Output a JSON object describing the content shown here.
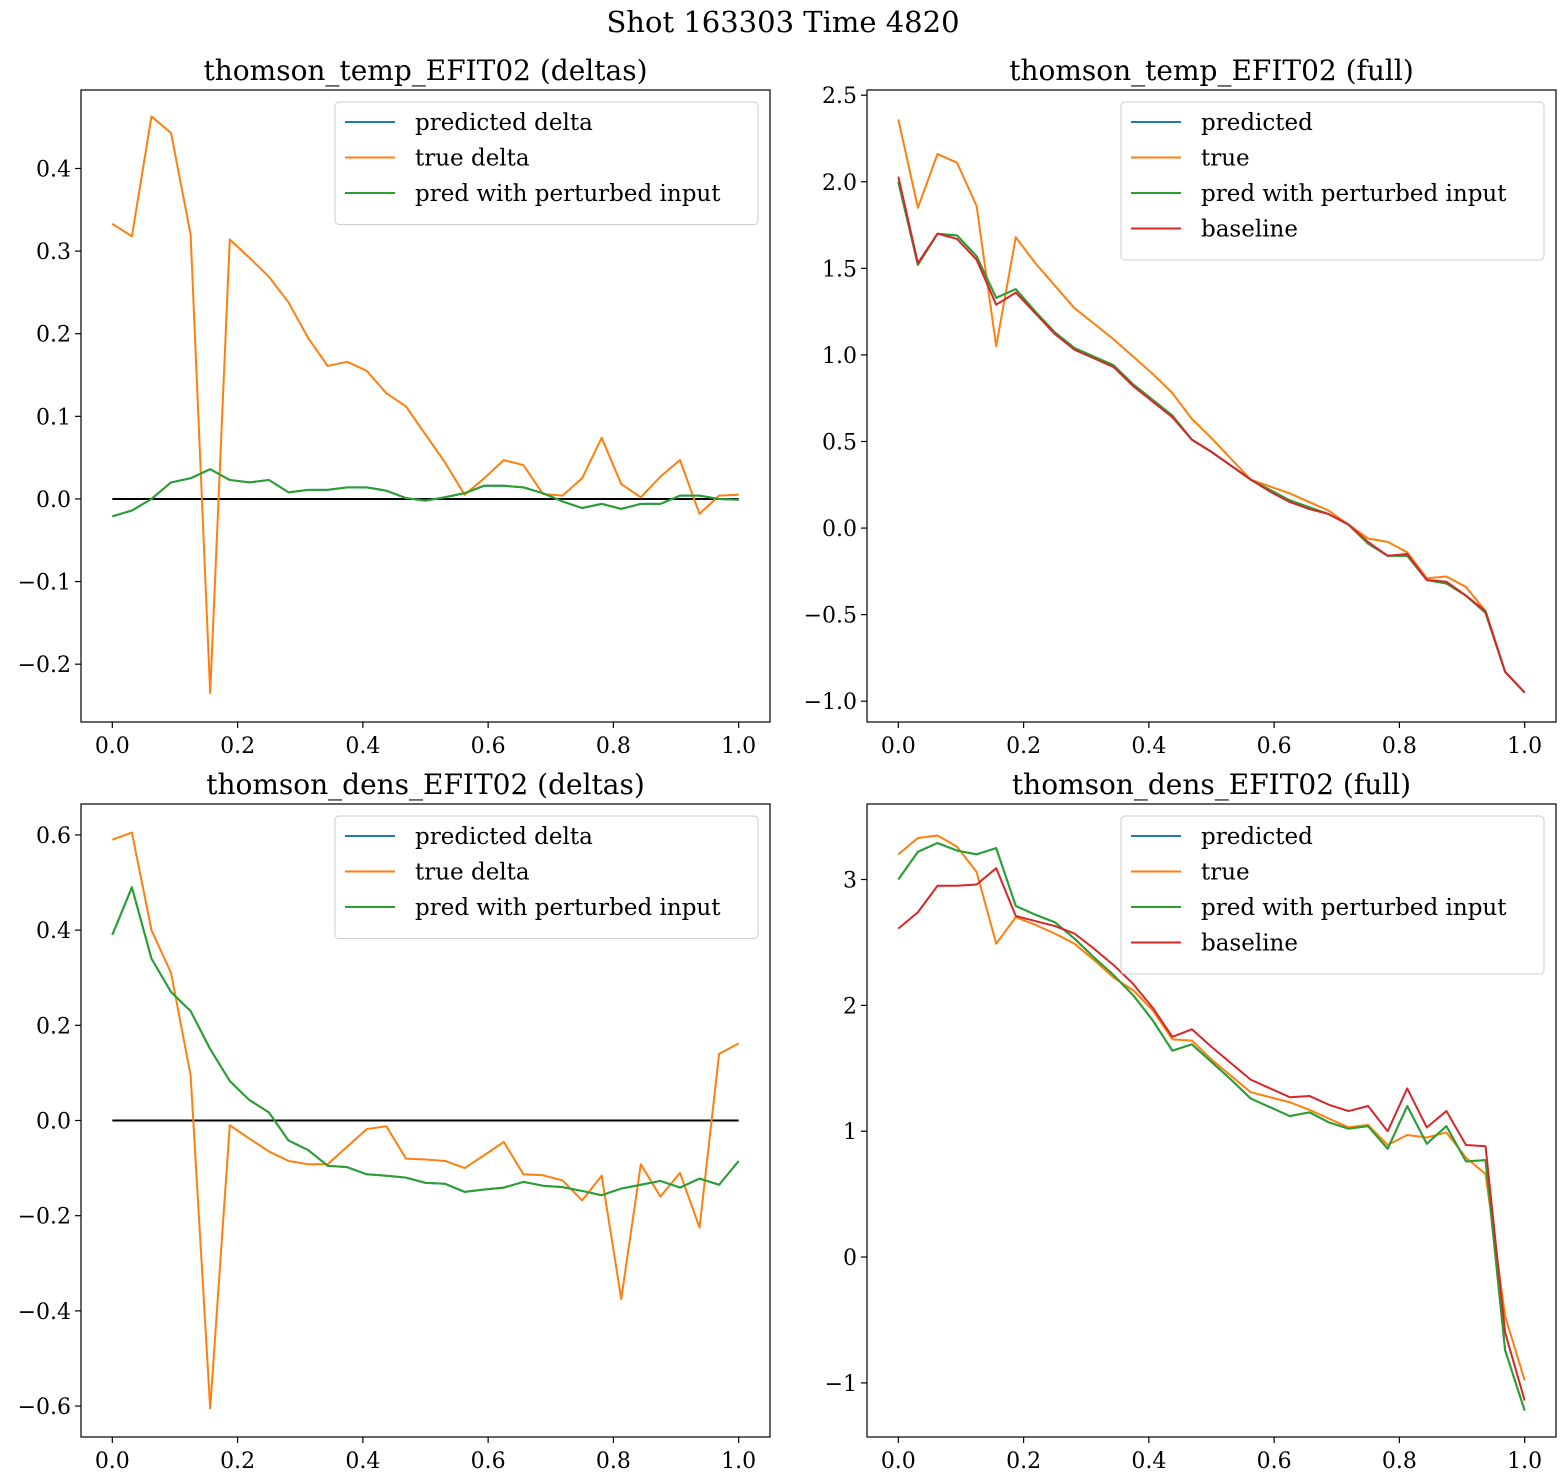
{
  "suptitle": "Shot 163303   Time 4820",
  "colors": {
    "predicted": "#1f77b4",
    "true": "#ff7f0e",
    "perturbed": "#2ca02c",
    "baseline": "#d62728",
    "zero_line": "#000000"
  },
  "chart_data": [
    {
      "type": "line",
      "title": "thomson_temp_EFIT02 (deltas)",
      "xlabel": "",
      "ylabel": "",
      "xlim": [
        -0.05,
        1.05
      ],
      "ylim": [
        -0.27,
        0.495
      ],
      "xticks": [
        0.0,
        0.2,
        0.4,
        0.6,
        0.8,
        1.0
      ],
      "xtick_labels": [
        "0.0",
        "0.2",
        "0.4",
        "0.6",
        "0.8",
        "1.0"
      ],
      "yticks": [
        -0.2,
        -0.1,
        0.0,
        0.1,
        0.2,
        0.3,
        0.4
      ],
      "ytick_labels": [
        "−0.2",
        "−0.1",
        "0.0",
        "0.1",
        "0.2",
        "0.3",
        "0.4"
      ],
      "legend_position": "top-right",
      "legend": [
        "predicted delta",
        "true delta",
        "pred with perturbed input"
      ],
      "zero_line": true,
      "x": [
        0.0,
        0.03125,
        0.0625,
        0.09375,
        0.125,
        0.15625,
        0.1875,
        0.21875,
        0.25,
        0.28125,
        0.3125,
        0.34375,
        0.375,
        0.40625,
        0.4375,
        0.46875,
        0.5,
        0.53125,
        0.5625,
        0.59375,
        0.625,
        0.65625,
        0.6875,
        0.71875,
        0.75,
        0.78125,
        0.8125,
        0.84375,
        0.875,
        0.90625,
        0.9375,
        0.96875,
        1.0
      ],
      "series": [
        {
          "name": "predicted delta",
          "color_key": "predicted",
          "values": [
            -0.021,
            -0.014,
            0.0,
            0.02,
            0.025,
            0.036,
            0.023,
            0.02,
            0.023,
            0.008,
            0.011,
            0.011,
            0.014,
            0.014,
            0.01,
            0.001,
            -0.002,
            0.002,
            0.007,
            0.016,
            0.016,
            0.014,
            0.007,
            -0.003,
            -0.011,
            -0.006,
            -0.012,
            -0.006,
            -0.006,
            0.004,
            0.004,
            0.0,
            -0.001
          ]
        },
        {
          "name": "true delta",
          "color_key": "true",
          "values": [
            0.333,
            0.318,
            0.463,
            0.443,
            0.32,
            -0.235,
            0.314,
            0.292,
            0.269,
            0.238,
            0.195,
            0.161,
            0.166,
            0.155,
            0.128,
            0.112,
            0.078,
            0.044,
            0.005,
            0.025,
            0.047,
            0.041,
            0.006,
            0.004,
            0.025,
            0.074,
            0.018,
            0.002,
            0.027,
            0.047,
            -0.018,
            0.004,
            0.005
          ]
        },
        {
          "name": "pred with perturbed input",
          "color_key": "perturbed",
          "values": [
            -0.021,
            -0.014,
            0.0,
            0.02,
            0.025,
            0.036,
            0.023,
            0.02,
            0.023,
            0.008,
            0.011,
            0.011,
            0.014,
            0.014,
            0.01,
            0.001,
            -0.002,
            0.002,
            0.007,
            0.016,
            0.016,
            0.014,
            0.007,
            -0.003,
            -0.011,
            -0.006,
            -0.012,
            -0.006,
            -0.006,
            0.004,
            0.004,
            0.0,
            -0.001
          ]
        }
      ]
    },
    {
      "type": "line",
      "title": "thomson_temp_EFIT02 (full)",
      "xlabel": "",
      "ylabel": "",
      "xlim": [
        -0.05,
        1.05
      ],
      "ylim": [
        -1.12,
        2.53
      ],
      "xticks": [
        0.0,
        0.2,
        0.4,
        0.6,
        0.8,
        1.0
      ],
      "xtick_labels": [
        "0.0",
        "0.2",
        "0.4",
        "0.6",
        "0.8",
        "1.0"
      ],
      "yticks": [
        -1.0,
        -0.5,
        0.0,
        0.5,
        1.0,
        1.5,
        2.0,
        2.5
      ],
      "ytick_labels": [
        "−1.0",
        "−0.5",
        "0.0",
        "0.5",
        "1.0",
        "1.5",
        "2.0",
        "2.5"
      ],
      "legend_position": "top-right",
      "legend": [
        "predicted",
        "true",
        "pred with perturbed input",
        "baseline"
      ],
      "zero_line": false,
      "x": [
        0.0,
        0.03125,
        0.0625,
        0.09375,
        0.125,
        0.15625,
        0.1875,
        0.21875,
        0.25,
        0.28125,
        0.3125,
        0.34375,
        0.375,
        0.40625,
        0.4375,
        0.46875,
        0.5,
        0.53125,
        0.5625,
        0.59375,
        0.625,
        0.65625,
        0.6875,
        0.71875,
        0.75,
        0.78125,
        0.8125,
        0.84375,
        0.875,
        0.90625,
        0.9375,
        0.96875,
        1.0
      ],
      "series": [
        {
          "name": "predicted",
          "color_key": "predicted",
          "values": [
            2.0,
            1.52,
            1.7,
            1.69,
            1.57,
            1.33,
            1.38,
            1.25,
            1.13,
            1.04,
            0.99,
            0.94,
            0.83,
            0.74,
            0.65,
            0.51,
            0.44,
            0.36,
            0.28,
            0.22,
            0.16,
            0.12,
            0.08,
            0.02,
            -0.09,
            -0.16,
            -0.16,
            -0.3,
            -0.32,
            -0.39,
            -0.49,
            -0.83,
            -0.95
          ]
        },
        {
          "name": "true",
          "color_key": "true",
          "values": [
            2.36,
            1.85,
            2.16,
            2.11,
            1.86,
            1.05,
            1.68,
            1.53,
            1.4,
            1.27,
            1.18,
            1.09,
            0.99,
            0.89,
            0.78,
            0.63,
            0.52,
            0.4,
            0.28,
            0.24,
            0.2,
            0.15,
            0.1,
            0.02,
            -0.06,
            -0.08,
            -0.14,
            -0.29,
            -0.28,
            -0.34,
            -0.48,
            -0.83,
            -0.95
          ]
        },
        {
          "name": "pred with perturbed input",
          "color_key": "perturbed",
          "values": [
            2.0,
            1.52,
            1.7,
            1.69,
            1.57,
            1.33,
            1.38,
            1.25,
            1.13,
            1.04,
            0.99,
            0.94,
            0.83,
            0.74,
            0.65,
            0.51,
            0.44,
            0.36,
            0.28,
            0.22,
            0.16,
            0.12,
            0.08,
            0.02,
            -0.09,
            -0.16,
            -0.16,
            -0.3,
            -0.32,
            -0.39,
            -0.49,
            -0.83,
            -0.95
          ]
        },
        {
          "name": "baseline",
          "color_key": "baseline",
          "values": [
            2.03,
            1.53,
            1.7,
            1.67,
            1.55,
            1.29,
            1.36,
            1.24,
            1.12,
            1.03,
            0.98,
            0.93,
            0.82,
            0.73,
            0.64,
            0.51,
            0.44,
            0.36,
            0.28,
            0.21,
            0.15,
            0.11,
            0.08,
            0.02,
            -0.08,
            -0.16,
            -0.15,
            -0.3,
            -0.31,
            -0.39,
            -0.48,
            -0.83,
            -0.95
          ]
        }
      ]
    },
    {
      "type": "line",
      "title": "thomson_dens_EFIT02 (deltas)",
      "xlabel": "",
      "ylabel": "",
      "xlim": [
        -0.05,
        1.05
      ],
      "ylim": [
        -0.665,
        0.665
      ],
      "xticks": [
        0.0,
        0.2,
        0.4,
        0.6,
        0.8,
        1.0
      ],
      "xtick_labels": [
        "0.0",
        "0.2",
        "0.4",
        "0.6",
        "0.8",
        "1.0"
      ],
      "yticks": [
        -0.6,
        -0.4,
        -0.2,
        0.0,
        0.2,
        0.4,
        0.6
      ],
      "ytick_labels": [
        "−0.6",
        "−0.4",
        "−0.2",
        "0.0",
        "0.2",
        "0.4",
        "0.6"
      ],
      "legend_position": "top-right",
      "legend": [
        "predicted delta",
        "true delta",
        "pred with perturbed input"
      ],
      "zero_line": true,
      "x": [
        0.0,
        0.03125,
        0.0625,
        0.09375,
        0.125,
        0.15625,
        0.1875,
        0.21875,
        0.25,
        0.28125,
        0.3125,
        0.34375,
        0.375,
        0.40625,
        0.4375,
        0.46875,
        0.5,
        0.53125,
        0.5625,
        0.59375,
        0.625,
        0.65625,
        0.6875,
        0.71875,
        0.75,
        0.78125,
        0.8125,
        0.84375,
        0.875,
        0.90625,
        0.9375,
        0.96875,
        1.0
      ],
      "series": [
        {
          "name": "predicted delta",
          "color_key": "predicted",
          "values": [
            0.39,
            0.49,
            0.34,
            0.27,
            0.23,
            0.15,
            0.083,
            0.043,
            0.017,
            -0.042,
            -0.062,
            -0.095,
            -0.098,
            -0.113,
            -0.116,
            -0.12,
            -0.131,
            -0.133,
            -0.15,
            -0.145,
            -0.141,
            -0.129,
            -0.137,
            -0.14,
            -0.148,
            -0.157,
            -0.143,
            -0.135,
            -0.127,
            -0.141,
            -0.122,
            -0.135,
            -0.085
          ]
        },
        {
          "name": "true delta",
          "color_key": "true",
          "values": [
            0.59,
            0.605,
            0.4,
            0.31,
            0.095,
            -0.605,
            -0.01,
            -0.038,
            -0.065,
            -0.085,
            -0.092,
            -0.092,
            -0.055,
            -0.018,
            -0.012,
            -0.08,
            -0.082,
            -0.085,
            -0.1,
            -0.073,
            -0.045,
            -0.113,
            -0.115,
            -0.126,
            -0.168,
            -0.116,
            -0.375,
            -0.092,
            -0.16,
            -0.11,
            -0.225,
            0.14,
            0.162
          ]
        },
        {
          "name": "pred with perturbed input",
          "color_key": "perturbed",
          "values": [
            0.39,
            0.49,
            0.34,
            0.27,
            0.23,
            0.15,
            0.083,
            0.043,
            0.017,
            -0.042,
            -0.062,
            -0.095,
            -0.098,
            -0.113,
            -0.116,
            -0.12,
            -0.131,
            -0.133,
            -0.15,
            -0.145,
            -0.141,
            -0.129,
            -0.137,
            -0.14,
            -0.148,
            -0.157,
            -0.143,
            -0.135,
            -0.127,
            -0.141,
            -0.122,
            -0.135,
            -0.085
          ]
        }
      ]
    },
    {
      "type": "line",
      "title": "thomson_dens_EFIT02 (full)",
      "xlabel": "",
      "ylabel": "",
      "xlim": [
        -0.05,
        1.05
      ],
      "ylim": [
        -1.43,
        3.6
      ],
      "xticks": [
        0.0,
        0.2,
        0.4,
        0.6,
        0.8,
        1.0
      ],
      "xtick_labels": [
        "0.0",
        "0.2",
        "0.4",
        "0.6",
        "0.8",
        "1.0"
      ],
      "yticks": [
        -1,
        0,
        1,
        2,
        3
      ],
      "ytick_labels": [
        "−1",
        "0",
        "1",
        "2",
        "3"
      ],
      "legend_position": "top-right",
      "legend": [
        "predicted",
        "true",
        "pred with perturbed input",
        "baseline"
      ],
      "zero_line": false,
      "x": [
        0.0,
        0.03125,
        0.0625,
        0.09375,
        0.125,
        0.15625,
        0.1875,
        0.21875,
        0.25,
        0.28125,
        0.3125,
        0.34375,
        0.375,
        0.40625,
        0.4375,
        0.46875,
        0.5,
        0.53125,
        0.5625,
        0.59375,
        0.625,
        0.65625,
        0.6875,
        0.71875,
        0.75,
        0.78125,
        0.8125,
        0.84375,
        0.875,
        0.90625,
        0.9375,
        0.96875,
        1.0
      ],
      "series": [
        {
          "name": "predicted",
          "color_key": "predicted",
          "values": [
            3.0,
            3.22,
            3.29,
            3.23,
            3.2,
            3.25,
            2.79,
            2.72,
            2.66,
            2.53,
            2.38,
            2.24,
            2.08,
            1.88,
            1.64,
            1.69,
            1.55,
            1.41,
            1.26,
            1.19,
            1.12,
            1.15,
            1.07,
            1.02,
            1.04,
            0.86,
            1.2,
            0.9,
            1.04,
            0.76,
            0.77,
            -0.74,
            -1.22
          ]
        },
        {
          "name": "true",
          "color_key": "true",
          "values": [
            3.2,
            3.33,
            3.35,
            3.26,
            3.06,
            2.49,
            2.7,
            2.64,
            2.57,
            2.49,
            2.36,
            2.22,
            2.12,
            1.96,
            1.73,
            1.72,
            1.57,
            1.44,
            1.31,
            1.27,
            1.23,
            1.17,
            1.1,
            1.03,
            1.05,
            0.89,
            0.97,
            0.95,
            0.99,
            0.79,
            0.66,
            -0.47,
            -0.98
          ]
        },
        {
          "name": "pred with perturbed input",
          "color_key": "perturbed",
          "values": [
            3.0,
            3.22,
            3.29,
            3.23,
            3.2,
            3.25,
            2.79,
            2.72,
            2.66,
            2.53,
            2.38,
            2.24,
            2.08,
            1.88,
            1.64,
            1.69,
            1.55,
            1.41,
            1.26,
            1.19,
            1.12,
            1.15,
            1.07,
            1.02,
            1.04,
            0.86,
            1.2,
            0.9,
            1.04,
            0.76,
            0.77,
            -0.74,
            -1.22
          ]
        },
        {
          "name": "baseline",
          "color_key": "baseline",
          "values": [
            2.61,
            2.74,
            2.95,
            2.95,
            2.96,
            3.09,
            2.71,
            2.67,
            2.63,
            2.57,
            2.45,
            2.32,
            2.17,
            1.98,
            1.75,
            1.81,
            1.67,
            1.54,
            1.41,
            1.34,
            1.27,
            1.28,
            1.21,
            1.16,
            1.2,
            1.0,
            1.34,
            1.03,
            1.16,
            0.89,
            0.88,
            -0.6,
            -1.14
          ]
        }
      ]
    }
  ]
}
